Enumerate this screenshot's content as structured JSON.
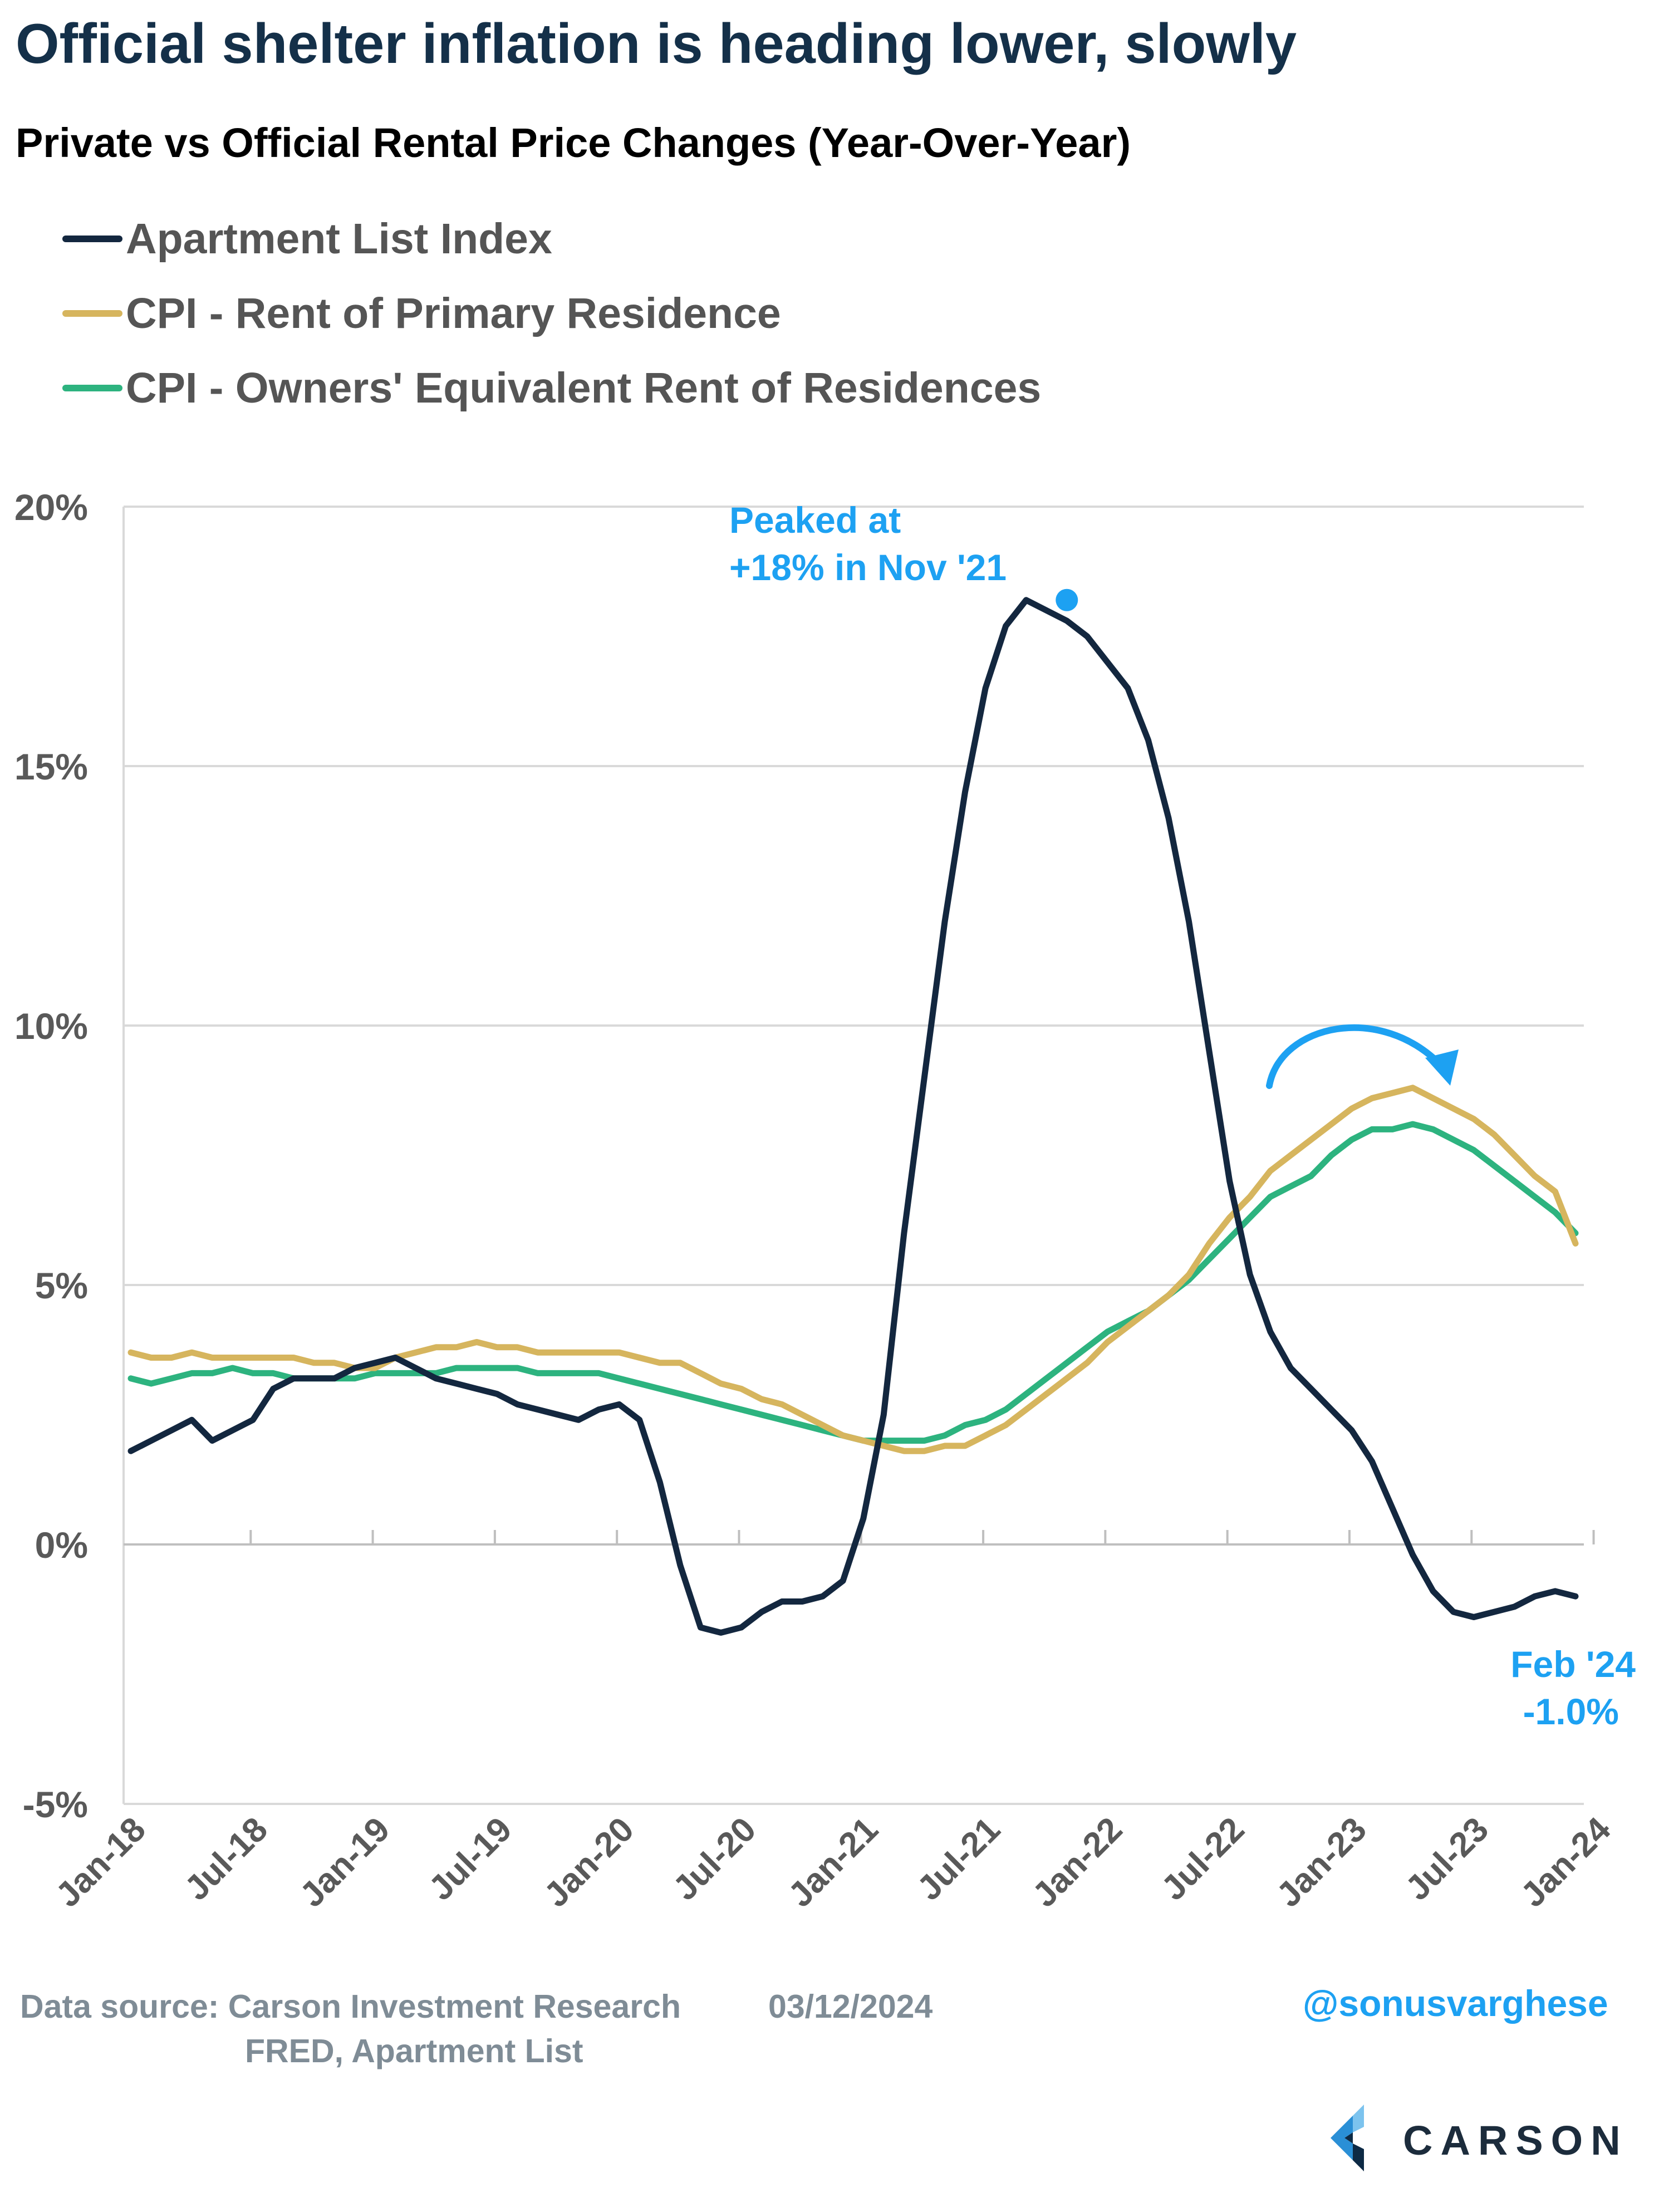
{
  "title": "Official shelter inflation is heading lower, slowly",
  "subtitle": "Private vs Official Rental Price Changes (Year-Over-Year)",
  "footer": {
    "source_line1": "Data source: Carson Investment Research",
    "source_line2": "FRED, Apartment List",
    "date": "03/12/2024",
    "handle": "@sonusvarghese",
    "logo_text": "CARSON"
  },
  "colors": {
    "apartment": "#13273f",
    "rent": "#d6b55e",
    "oer": "#2db37f",
    "annotation": "#1da1f2",
    "grid": "#d9d9d9",
    "axis_text": "#595959"
  },
  "chart_data": {
    "type": "line",
    "ylim": [
      -5,
      20
    ],
    "yticks": [
      -5,
      0,
      5,
      10,
      15,
      20
    ],
    "ytick_labels": [
      "-5%",
      "0%",
      "5%",
      "10%",
      "15%",
      "20%"
    ],
    "xtick_labels": [
      "Jan-18",
      "Jul-18",
      "Jan-19",
      "Jul-19",
      "Jan-20",
      "Jul-20",
      "Jan-21",
      "Jul-21",
      "Jan-22",
      "Jul-22",
      "Jan-23",
      "Jul-23",
      "Jan-24"
    ],
    "x_start": "Jan-18",
    "x_end": "Feb-24",
    "grid": "horizontal",
    "legend_position": "top-left",
    "series": [
      {
        "name": "Apartment List Index",
        "color_key": "apartment",
        "values": [
          1.8,
          2.0,
          2.2,
          2.4,
          2.0,
          2.2,
          2.4,
          3.0,
          3.2,
          3.2,
          3.2,
          3.4,
          3.5,
          3.6,
          3.4,
          3.2,
          3.1,
          3.0,
          2.9,
          2.7,
          2.6,
          2.5,
          2.4,
          2.6,
          2.7,
          2.4,
          1.2,
          -0.4,
          -1.6,
          -1.7,
          -1.6,
          -1.3,
          -1.1,
          -1.1,
          -1.0,
          -0.7,
          0.5,
          2.5,
          6.0,
          9.0,
          12.0,
          14.5,
          16.5,
          17.7,
          18.2,
          18.0,
          17.8,
          17.5,
          17.0,
          16.5,
          15.5,
          14.0,
          12.0,
          9.5,
          7.0,
          5.2,
          4.1,
          3.4,
          3.0,
          2.6,
          2.2,
          1.6,
          0.7,
          -0.2,
          -0.9,
          -1.3,
          -1.4,
          -1.3,
          -1.2,
          -1.0,
          -0.9,
          -1.0
        ]
      },
      {
        "name": "CPI - Rent of Primary Residence",
        "color_key": "rent",
        "values": [
          3.7,
          3.6,
          3.6,
          3.7,
          3.6,
          3.6,
          3.6,
          3.6,
          3.6,
          3.5,
          3.5,
          3.4,
          3.4,
          3.6,
          3.7,
          3.8,
          3.8,
          3.9,
          3.8,
          3.8,
          3.7,
          3.7,
          3.7,
          3.7,
          3.7,
          3.6,
          3.5,
          3.5,
          3.3,
          3.1,
          3.0,
          2.8,
          2.7,
          2.5,
          2.3,
          2.1,
          2.0,
          1.9,
          1.8,
          1.8,
          1.9,
          1.9,
          2.1,
          2.3,
          2.6,
          2.9,
          3.2,
          3.5,
          3.9,
          4.2,
          4.5,
          4.8,
          5.2,
          5.8,
          6.3,
          6.7,
          7.2,
          7.5,
          7.8,
          8.1,
          8.4,
          8.6,
          8.7,
          8.8,
          8.6,
          8.4,
          8.2,
          7.9,
          7.5,
          7.1,
          6.8,
          5.8
        ]
      },
      {
        "name": "CPI - Owners' Equivalent Rent of Residences",
        "color_key": "oer",
        "values": [
          3.2,
          3.1,
          3.2,
          3.3,
          3.3,
          3.4,
          3.3,
          3.3,
          3.2,
          3.2,
          3.2,
          3.2,
          3.3,
          3.3,
          3.3,
          3.3,
          3.4,
          3.4,
          3.4,
          3.4,
          3.3,
          3.3,
          3.3,
          3.3,
          3.2,
          3.1,
          3.0,
          2.9,
          2.8,
          2.7,
          2.6,
          2.5,
          2.4,
          2.3,
          2.2,
          2.1,
          2.0,
          2.0,
          2.0,
          2.0,
          2.1,
          2.3,
          2.4,
          2.6,
          2.9,
          3.2,
          3.5,
          3.8,
          4.1,
          4.3,
          4.5,
          4.8,
          5.1,
          5.5,
          5.9,
          6.3,
          6.7,
          6.9,
          7.1,
          7.5,
          7.8,
          8.0,
          8.0,
          8.1,
          8.0,
          7.8,
          7.6,
          7.3,
          7.0,
          6.7,
          6.4,
          6.0
        ]
      }
    ],
    "annotations": {
      "peak_label_line1": "Peaked at",
      "peak_label_line2": "+18% in Nov '21",
      "end_label_line1": "Feb '24",
      "end_label_line2": "-1.0%"
    }
  }
}
